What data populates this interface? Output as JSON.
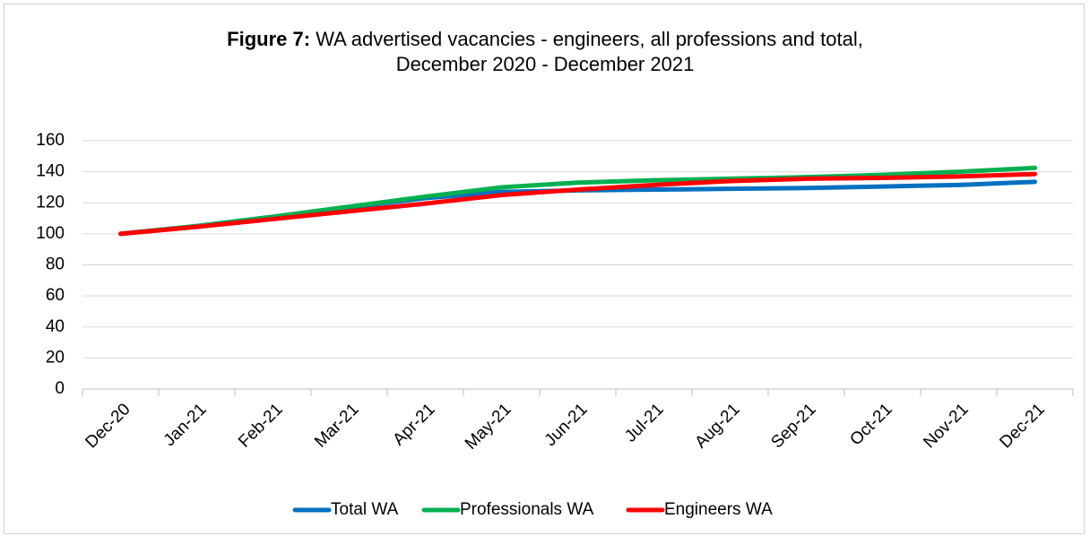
{
  "chart_data": {
    "type": "line",
    "title_prefix": "Figure 7:",
    "title": "WA advertised vacancies - engineers, all professions and total, December 2020 - December 2021",
    "categories": [
      "Dec-20",
      "Jan-21",
      "Feb-21",
      "Mar-21",
      "Apr-21",
      "May-21",
      "Jun-21",
      "Jul-21",
      "Aug-21",
      "Sep-21",
      "Oct-21",
      "Nov-21",
      "Dec-21"
    ],
    "series": [
      {
        "name": "Total WA",
        "color": "#0070c0",
        "values": [
          100,
          105,
          111,
          117,
          123,
          127,
          128,
          128.5,
          129,
          129.5,
          130.5,
          131.5,
          133.5
        ]
      },
      {
        "name": "Professionals WA",
        "color": "#00b050",
        "values": [
          100,
          105,
          111,
          117.5,
          124,
          130,
          133,
          134.5,
          135.5,
          136.5,
          138,
          140,
          142.5
        ]
      },
      {
        "name": "Engineers WA",
        "color": "#ff0000",
        "values": [
          100,
          104.5,
          109.5,
          114.5,
          119.5,
          125,
          128.5,
          131.5,
          134,
          135.5,
          136,
          137,
          138.5
        ]
      }
    ],
    "ylim": [
      0,
      160
    ],
    "yticks": [
      0,
      20,
      40,
      60,
      80,
      100,
      120,
      140,
      160
    ],
    "grid": true,
    "legend": "bottom"
  }
}
